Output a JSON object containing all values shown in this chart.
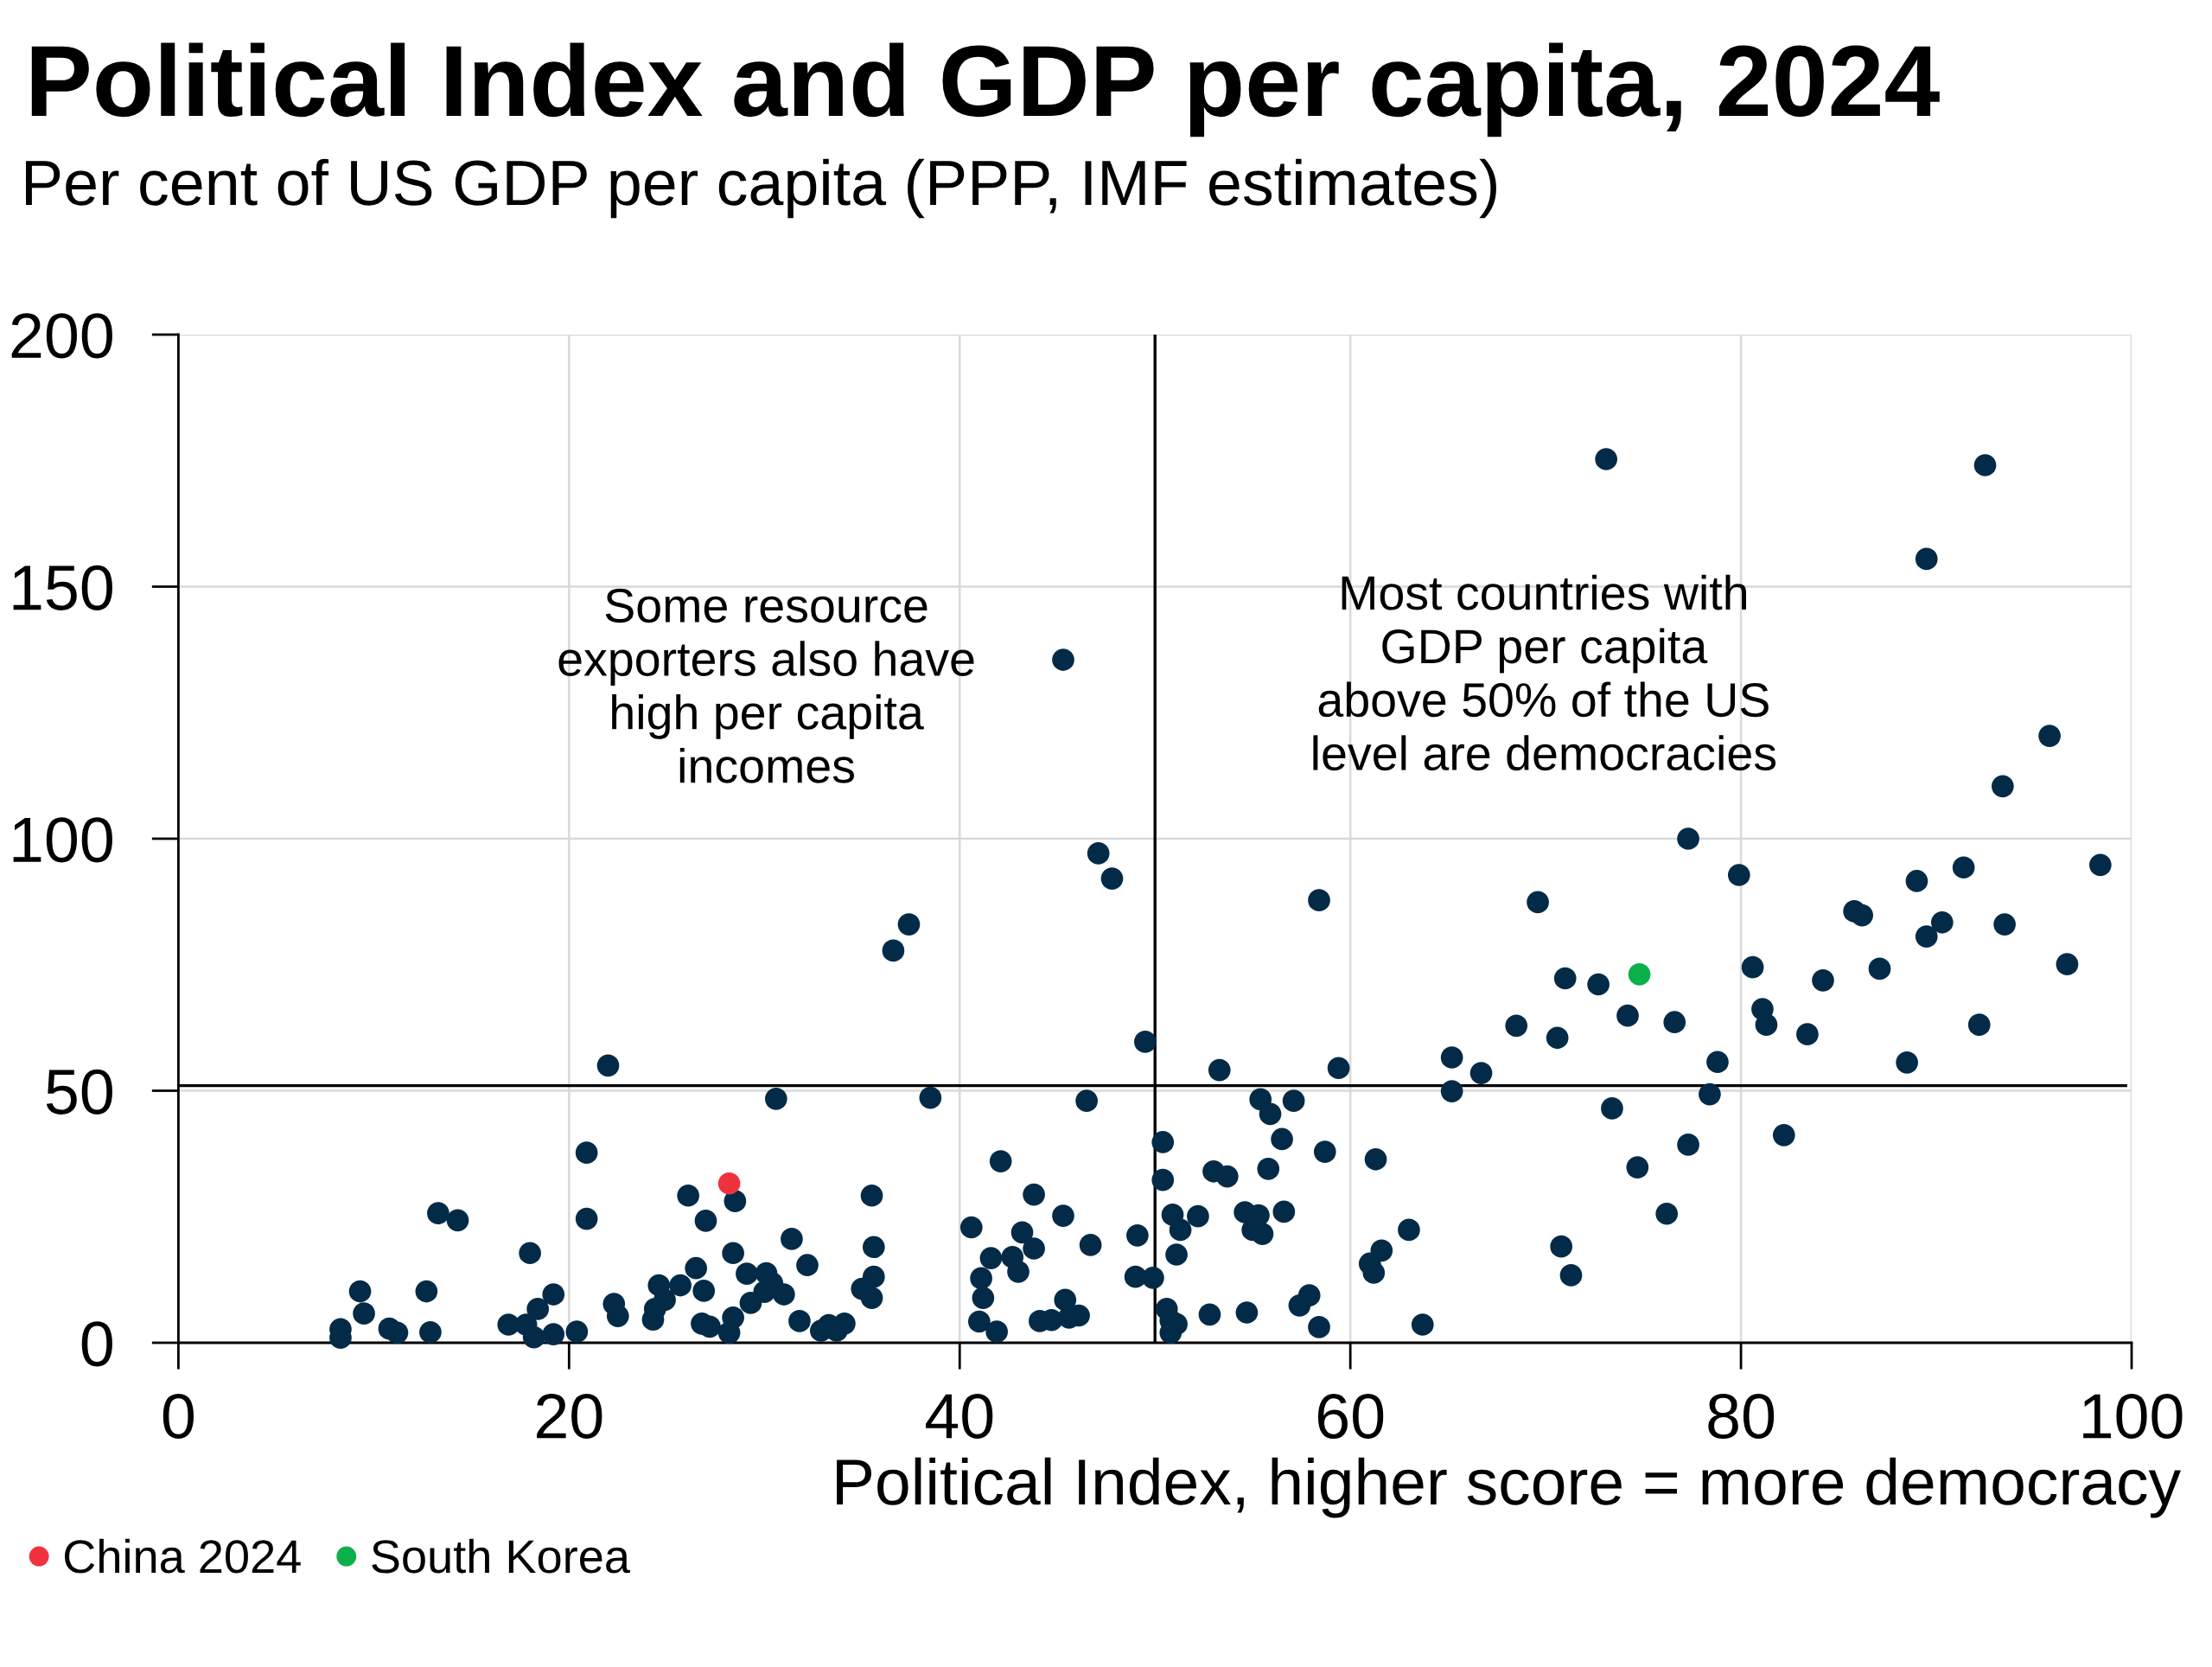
{
  "chart_data": {
    "type": "scatter",
    "title": "Political Index and GDP per capita, 2024",
    "subtitle": "Per cent of US GDP per capita (PPP, IMF estimates)",
    "xlabel": "Political Index, higher score = more democracy",
    "xlim": [
      0,
      100
    ],
    "xticks": [
      0,
      20,
      40,
      60,
      80,
      100
    ],
    "ylim": [
      0,
      200
    ],
    "yticks": [
      0,
      50,
      100,
      150,
      200
    ],
    "grid": true,
    "legend": "bottom",
    "marker": "circle",
    "series": [
      {
        "color": "#032b48",
        "x": [
          22.0,
          30.6,
          20.9,
          26.1,
          28.5,
          13.3,
          14.3,
          20.9,
          27.0,
          31.4,
          18.0,
          28.4,
          26.5,
          32.2,
          29.1,
          30.1,
          24.6,
          25.7,
          30.4,
          30.0,
          31.0,
          26.9,
          29.3,
          9.3,
          12.7,
          19.2,
          9.5,
          18.4,
          22.3,
          22.5,
          24.9,
          24.4,
          24.3,
          28.4,
          31.8,
          8.3,
          8.3,
          10.8,
          11.2,
          12.9,
          16.9,
          17.8,
          18.2,
          19.2,
          20.4,
          26.8,
          27.2,
          28.2,
          32.9,
          33.3,
          33.7,
          34.1,
          49.5,
          53.3,
          59.4,
          65.2,
          66.7,
          65.2,
          38.5,
          46.5,
          55.4,
          55.9,
          57.1,
          50.4,
          56.5,
          58.7,
          61.3,
          42.1,
          50.4,
          53.0,
          53.7,
          55.8,
          35.5,
          43.8,
          45.3,
          40.6,
          43.2,
          50.9,
          52.2,
          54.6,
          55.3,
          56.6,
          51.3,
          55.0,
          55.5,
          49.1,
          35.6,
          43.8,
          46.7,
          51.1,
          63.0,
          61.6,
          61.0,
          61.2,
          41.6,
          42.7,
          43.0,
          35.6,
          35.0,
          35.5,
          41.1,
          41.2,
          49.0,
          49.9,
          41.0,
          41.9,
          44.1,
          44.7,
          45.4,
          45.6,
          46.1,
          50.6,
          50.8,
          51.1,
          50.8,
          52.8,
          54.7,
          57.4,
          57.9,
          58.4,
          63.7,
          79.9,
          69.6,
          89.0,
          91.4,
          98.4,
          85.8,
          86.2,
          90.3,
          89.5,
          93.5,
          96.7,
          80.6,
          84.2,
          87.1,
          71.0,
          72.7,
          68.5,
          70.6,
          74.2,
          76.6,
          81.1,
          81.3,
          83.4,
          92.2,
          88.5,
          78.8,
          78.4,
          73.4,
          82.2,
          77.3,
          74.7,
          76.2,
          70.8,
          71.3,
          73.1,
          92.5,
          89.5,
          95.8,
          93.4,
          77.3,
          45.3,
          47.1,
          47.8,
          58.4,
          37.4,
          36.6
        ],
        "values": [
          55.0,
          48.4,
          37.7,
          29.2,
          28.1,
          25.7,
          24.3,
          24.6,
          24.2,
          20.6,
          17.8,
          17.8,
          14.8,
          15.4,
          13.7,
          13.8,
          11.4,
          11.4,
          11.8,
          10.1,
          9.6,
          10.3,
          7.9,
          10.2,
          10.2,
          9.6,
          5.8,
          6.7,
          7.7,
          5.3,
          8.5,
          6.7,
          4.6,
          5.0,
          4.3,
          2.7,
          1.0,
          2.8,
          2.0,
          2.1,
          3.6,
          3.6,
          1.1,
          1.7,
          2.2,
          3.8,
          3.2,
          2.0,
          2.4,
          3.5,
          2.4,
          3.8,
          59.7,
          54.1,
          54.5,
          56.6,
          53.5,
          49.9,
          48.6,
          48.0,
          48.3,
          45.4,
          48.0,
          39.8,
          40.4,
          37.9,
          36.4,
          36.0,
          32.3,
          34.0,
          33.0,
          34.5,
          29.2,
          29.4,
          25.2,
          22.9,
          21.9,
          25.4,
          25.1,
          25.9,
          25.3,
          26.0,
          22.4,
          22.4,
          21.6,
          21.3,
          19.0,
          18.7,
          19.4,
          17.5,
          22.4,
          18.3,
          15.7,
          13.9,
          16.8,
          17.0,
          14.1,
          13.1,
          10.7,
          8.9,
          12.8,
          8.9,
          13.1,
          12.9,
          4.2,
          2.2,
          4.3,
          4.5,
          8.5,
          5.0,
          5.4,
          6.7,
          4.4,
          3.7,
          2.0,
          5.6,
          6.0,
          7.4,
          9.4,
          3.1,
          3.6,
          92.8,
          87.4,
          91.6,
          94.3,
          94.8,
          85.6,
          84.8,
          83.4,
          80.6,
          83.0,
          75.1,
          74.5,
          71.9,
          74.2,
          72.3,
          71.1,
          62.9,
          60.5,
          64.9,
          63.6,
          66.2,
          63.1,
          61.2,
          63.1,
          55.6,
          55.7,
          49.3,
          46.5,
          41.2,
          39.3,
          34.8,
          25.6,
          19.1,
          13.4,
          175.3,
          174.1,
          155.5,
          120.4,
          110.4,
          100.0,
          135.5,
          97.1,
          92.1,
          87.8,
          83.0,
          77.8
        ]
      },
      {
        "name": "China 2024",
        "color": "#f0323f",
        "x": [
          28.2
        ],
        "values": [
          31.6
        ]
      },
      {
        "name": "South Korea",
        "color": "#0bb04b",
        "x": [
          74.8
        ],
        "values": [
          73.1
        ]
      }
    ],
    "ref_lines": [
      {
        "axis": "x",
        "value": 50,
        "color": "#000000"
      },
      {
        "axis": "y",
        "value": 51,
        "color": "#000000"
      }
    ],
    "annotations": [
      "Some resource\nexporters also have\nhigh per capita\nincomes",
      "Most countries with\nGDP per capita\nabove 50% of the US\nlevel are democracies"
    ]
  }
}
